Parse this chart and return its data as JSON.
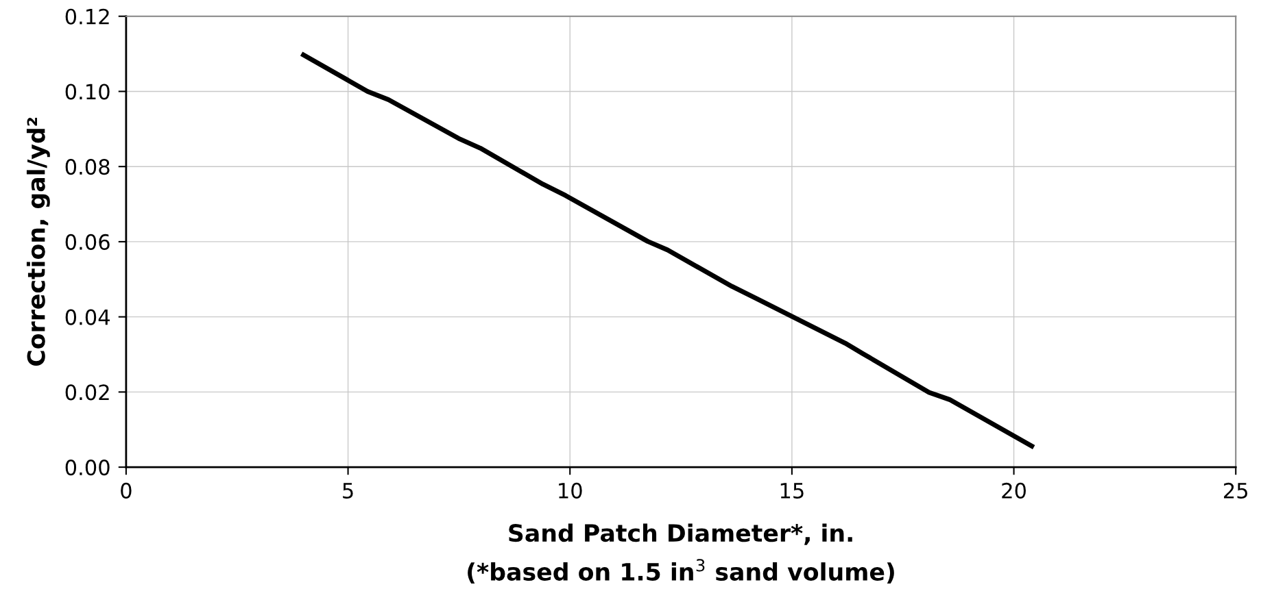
{
  "chart_data": {
    "type": "line",
    "xlabel": "Sand Patch Diameter*, in.\n(*based on 1.5 in$^{3}$ sand volume)",
    "ylabel": "Correction, gal/yd²",
    "series": [
      {
        "color": "#000000",
        "x": [
          3.95,
          5.04,
          5.44,
          5.91,
          7.49,
          7.98,
          9.39,
          9.9,
          11.75,
          12.2,
          13.65,
          14.2,
          16.2,
          16.6,
          18.09,
          18.55,
          20.45
        ],
        "values": [
          0.11,
          0.1027,
          0.1,
          0.0978,
          0.0875,
          0.0849,
          0.0753,
          0.0723,
          0.0601,
          0.0578,
          0.0481,
          0.0449,
          0.033,
          0.0302,
          0.0199,
          0.018,
          0.0053
        ]
      }
    ],
    "xlim": [
      0,
      25
    ],
    "xticks": [
      0,
      5,
      10,
      15,
      20,
      25
    ],
    "ylim": [
      0,
      0.12
    ],
    "yticks": [
      {
        "value": 0,
        "label": "0.00"
      },
      {
        "value": 0.02,
        "label": "0.02"
      },
      {
        "value": 0.04,
        "label": "0.04"
      },
      {
        "value": 0.06,
        "label": "0.06"
      },
      {
        "value": 0.08,
        "label": "0.08"
      },
      {
        "value": 0.1,
        "label": "0.10"
      },
      {
        "value": 0.12,
        "label": "0.12"
      }
    ],
    "grid": true,
    "marker": "none",
    "line_style": "solid"
  }
}
